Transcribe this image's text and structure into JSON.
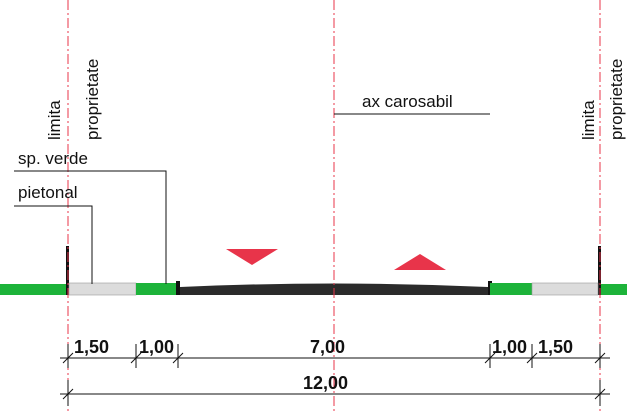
{
  "labels": {
    "property_limit_left_1": "limita",
    "property_limit_left_2": "proprietate",
    "property_limit_right_1": "limita",
    "property_limit_right_2": "proprietate",
    "green_space": "sp. verde",
    "sidewalk": "pietonal",
    "road_axis": "ax carosabil"
  },
  "dimensions": {
    "sidewalk_left": "1,50",
    "green_left": "1,00",
    "carriageway": "7,00",
    "green_right": "1,00",
    "sidewalk_right": "1,50",
    "total": "12,00"
  },
  "colors": {
    "green": "#1db33a",
    "sidewalk": "#dcdcdc",
    "asphalt": "#2b2b2b",
    "axis_red": "#e8344a",
    "arrow_red": "#e8344a",
    "line": "#111111"
  }
}
